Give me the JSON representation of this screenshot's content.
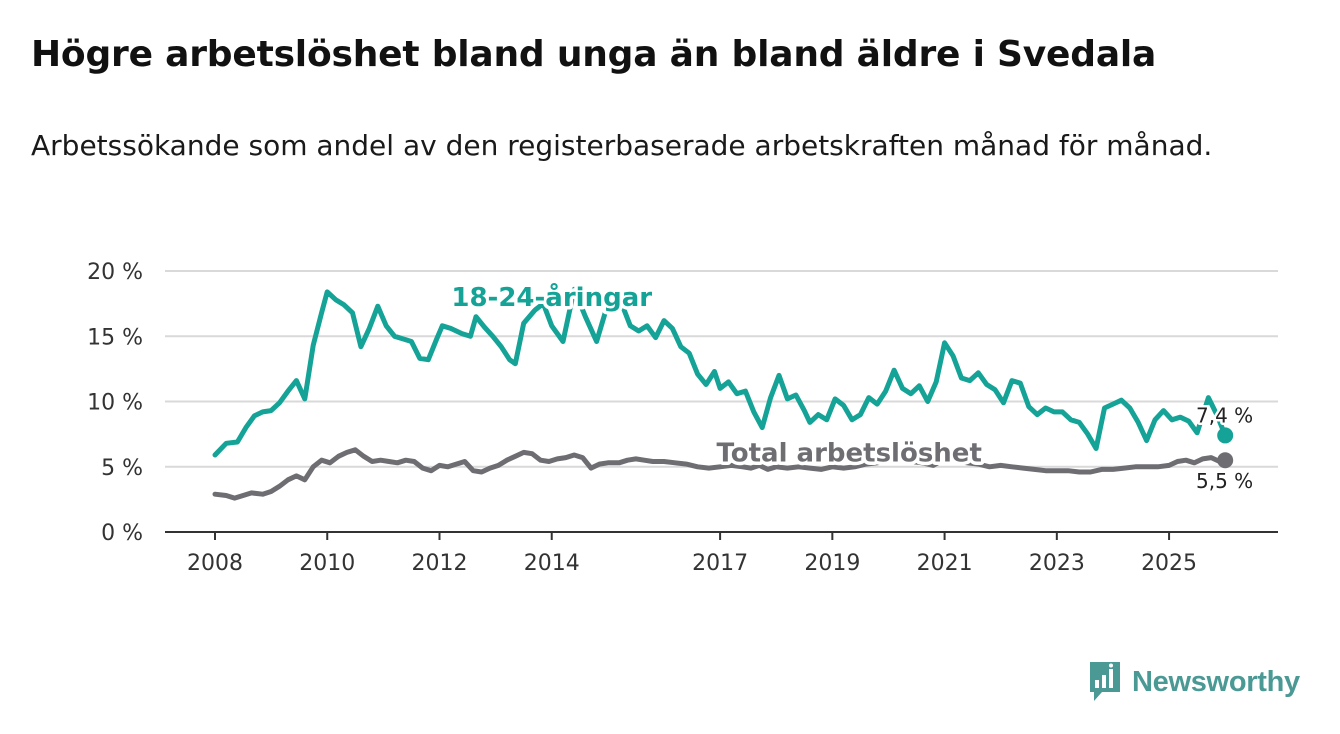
{
  "title": "Högre arbetslöshet bland unga än bland äldre i Svedala",
  "subtitle": "Arbetssökande som andel av den registerbaserade arbetskraften månad för månad.",
  "brand": {
    "name": "Newsworthy",
    "color": "#4a9994"
  },
  "colors": {
    "youth": "#14a396",
    "total": "#6e6d72",
    "grid": "#d9d9d9",
    "axis": "#333333"
  },
  "chart_data": {
    "type": "line",
    "title": "Högre arbetslöshet bland unga än bland äldre i Svedala",
    "xlabel": "",
    "ylabel": "",
    "xlim": [
      2008,
      2026.05
    ],
    "ylim": [
      0,
      20
    ],
    "yticks": [
      0,
      5,
      10,
      15,
      20
    ],
    "ytick_labels": [
      "0 %",
      "5 %",
      "10 %",
      "15 %",
      "20 %"
    ],
    "xticks": [
      2008,
      2010,
      2012,
      2014,
      2017,
      2019,
      2021,
      2023,
      2025
    ],
    "xtick_labels": [
      "2008",
      "2010",
      "2012",
      "2014",
      "2017",
      "2019",
      "2021",
      "2023",
      "2025"
    ],
    "grid": true,
    "series": [
      {
        "name": "18-24-åringar",
        "color": "#14a396",
        "end_label": "7,4 %",
        "points": [
          [
            2008.0,
            5.9
          ],
          [
            2008.2,
            6.8
          ],
          [
            2008.4,
            6.9
          ],
          [
            2008.55,
            8.0
          ],
          [
            2008.7,
            8.9
          ],
          [
            2008.85,
            9.2
          ],
          [
            2009.0,
            9.3
          ],
          [
            2009.15,
            9.9
          ],
          [
            2009.3,
            10.8
          ],
          [
            2009.45,
            11.6
          ],
          [
            2009.6,
            10.2
          ],
          [
            2009.75,
            14.3
          ],
          [
            2009.9,
            16.8
          ],
          [
            2010.0,
            18.4
          ],
          [
            2010.15,
            17.8
          ],
          [
            2010.3,
            17.4
          ],
          [
            2010.45,
            16.8
          ],
          [
            2010.6,
            14.2
          ],
          [
            2010.75,
            15.6
          ],
          [
            2010.9,
            17.3
          ],
          [
            2011.05,
            15.8
          ],
          [
            2011.2,
            15.0
          ],
          [
            2011.35,
            14.8
          ],
          [
            2011.5,
            14.6
          ],
          [
            2011.65,
            13.3
          ],
          [
            2011.8,
            13.2
          ],
          [
            2011.95,
            14.8
          ],
          [
            2012.05,
            15.8
          ],
          [
            2012.2,
            15.6
          ],
          [
            2012.3,
            15.4
          ],
          [
            2012.4,
            15.2
          ],
          [
            2012.55,
            15.0
          ],
          [
            2012.65,
            16.5
          ],
          [
            2012.8,
            15.7
          ],
          [
            2012.95,
            15.0
          ],
          [
            2013.1,
            14.2
          ],
          [
            2013.25,
            13.2
          ],
          [
            2013.35,
            12.9
          ],
          [
            2013.5,
            16.0
          ],
          [
            2013.7,
            17.0
          ],
          [
            2013.85,
            17.5
          ],
          [
            2014.0,
            15.8
          ],
          [
            2014.2,
            14.6
          ],
          [
            2014.4,
            18.6
          ],
          [
            2014.6,
            16.5
          ],
          [
            2014.8,
            14.6
          ],
          [
            2015.0,
            17.5
          ],
          [
            2015.2,
            18.0
          ],
          [
            2015.4,
            15.8
          ],
          [
            2015.55,
            15.4
          ],
          [
            2015.7,
            15.8
          ],
          [
            2015.85,
            14.9
          ],
          [
            2016.0,
            16.2
          ],
          [
            2016.15,
            15.6
          ],
          [
            2016.3,
            14.2
          ],
          [
            2016.45,
            13.7
          ],
          [
            2016.6,
            12.1
          ],
          [
            2016.75,
            11.3
          ],
          [
            2016.9,
            12.3
          ],
          [
            2017.0,
            11.0
          ],
          [
            2017.15,
            11.5
          ],
          [
            2017.3,
            10.6
          ],
          [
            2017.45,
            10.8
          ],
          [
            2017.6,
            9.2
          ],
          [
            2017.75,
            8.0
          ],
          [
            2017.9,
            10.3
          ],
          [
            2018.05,
            12.0
          ],
          [
            2018.2,
            10.2
          ],
          [
            2018.35,
            10.5
          ],
          [
            2018.5,
            9.3
          ],
          [
            2018.6,
            8.4
          ],
          [
            2018.75,
            9.0
          ],
          [
            2018.9,
            8.6
          ],
          [
            2019.05,
            10.2
          ],
          [
            2019.2,
            9.7
          ],
          [
            2019.35,
            8.6
          ],
          [
            2019.5,
            9.0
          ],
          [
            2019.65,
            10.3
          ],
          [
            2019.8,
            9.8
          ],
          [
            2019.95,
            10.8
          ],
          [
            2020.1,
            12.4
          ],
          [
            2020.25,
            11.0
          ],
          [
            2020.4,
            10.6
          ],
          [
            2020.55,
            11.2
          ],
          [
            2020.7,
            10.0
          ],
          [
            2020.85,
            11.5
          ],
          [
            2021.0,
            14.5
          ],
          [
            2021.15,
            13.5
          ],
          [
            2021.3,
            11.8
          ],
          [
            2021.45,
            11.6
          ],
          [
            2021.6,
            12.2
          ],
          [
            2021.75,
            11.3
          ],
          [
            2021.9,
            10.9
          ],
          [
            2022.05,
            9.9
          ],
          [
            2022.2,
            11.6
          ],
          [
            2022.35,
            11.4
          ],
          [
            2022.5,
            9.6
          ],
          [
            2022.65,
            9.0
          ],
          [
            2022.8,
            9.5
          ],
          [
            2022.95,
            9.2
          ],
          [
            2023.1,
            9.2
          ],
          [
            2023.25,
            8.6
          ],
          [
            2023.4,
            8.4
          ],
          [
            2023.55,
            7.5
          ],
          [
            2023.7,
            6.4
          ],
          [
            2023.85,
            9.5
          ],
          [
            2024.0,
            9.8
          ],
          [
            2024.15,
            10.1
          ],
          [
            2024.3,
            9.5
          ],
          [
            2024.45,
            8.4
          ],
          [
            2024.6,
            7.0
          ],
          [
            2024.75,
            8.6
          ],
          [
            2024.9,
            9.3
          ],
          [
            2025.05,
            8.6
          ],
          [
            2025.2,
            8.8
          ],
          [
            2025.35,
            8.5
          ],
          [
            2025.5,
            7.6
          ],
          [
            2025.7,
            10.3
          ],
          [
            2025.85,
            9.0
          ],
          [
            2026.0,
            7.4
          ]
        ]
      },
      {
        "name": "Total arbetslöshet",
        "color": "#6e6d72",
        "end_label": "5,5 %",
        "points": [
          [
            2008.0,
            2.9
          ],
          [
            2008.2,
            2.8
          ],
          [
            2008.35,
            2.6
          ],
          [
            2008.5,
            2.8
          ],
          [
            2008.65,
            3.0
          ],
          [
            2008.85,
            2.9
          ],
          [
            2009.0,
            3.1
          ],
          [
            2009.15,
            3.5
          ],
          [
            2009.3,
            4.0
          ],
          [
            2009.45,
            4.3
          ],
          [
            2009.6,
            4.0
          ],
          [
            2009.75,
            5.0
          ],
          [
            2009.9,
            5.5
          ],
          [
            2010.05,
            5.3
          ],
          [
            2010.2,
            5.8
          ],
          [
            2010.35,
            6.1
          ],
          [
            2010.5,
            6.3
          ],
          [
            2010.65,
            5.8
          ],
          [
            2010.8,
            5.4
          ],
          [
            2010.95,
            5.5
          ],
          [
            2011.1,
            5.4
          ],
          [
            2011.25,
            5.3
          ],
          [
            2011.4,
            5.5
          ],
          [
            2011.55,
            5.4
          ],
          [
            2011.7,
            4.9
          ],
          [
            2011.85,
            4.7
          ],
          [
            2012.0,
            5.1
          ],
          [
            2012.15,
            5.0
          ],
          [
            2012.3,
            5.2
          ],
          [
            2012.45,
            5.4
          ],
          [
            2012.6,
            4.7
          ],
          [
            2012.75,
            4.6
          ],
          [
            2012.9,
            4.9
          ],
          [
            2013.05,
            5.1
          ],
          [
            2013.2,
            5.5
          ],
          [
            2013.35,
            5.8
          ],
          [
            2013.5,
            6.1
          ],
          [
            2013.65,
            6.0
          ],
          [
            2013.8,
            5.5
          ],
          [
            2013.95,
            5.4
          ],
          [
            2014.1,
            5.6
          ],
          [
            2014.25,
            5.7
          ],
          [
            2014.4,
            5.9
          ],
          [
            2014.55,
            5.7
          ],
          [
            2014.7,
            4.9
          ],
          [
            2014.85,
            5.2
          ],
          [
            2015.0,
            5.3
          ],
          [
            2015.2,
            5.3
          ],
          [
            2015.35,
            5.5
          ],
          [
            2015.5,
            5.6
          ],
          [
            2015.65,
            5.5
          ],
          [
            2015.8,
            5.4
          ],
          [
            2016.0,
            5.4
          ],
          [
            2016.2,
            5.3
          ],
          [
            2016.4,
            5.2
          ],
          [
            2016.6,
            5.0
          ],
          [
            2016.8,
            4.9
          ],
          [
            2017.0,
            5.0
          ],
          [
            2017.2,
            5.1
          ],
          [
            2017.4,
            5.0
          ],
          [
            2017.55,
            4.9
          ],
          [
            2017.7,
            5.1
          ],
          [
            2017.85,
            4.8
          ],
          [
            2018.0,
            5.0
          ],
          [
            2018.2,
            4.9
          ],
          [
            2018.4,
            5.0
          ],
          [
            2018.6,
            4.9
          ],
          [
            2018.8,
            4.8
          ],
          [
            2019.0,
            5.0
          ],
          [
            2019.2,
            4.9
          ],
          [
            2019.4,
            5.0
          ],
          [
            2019.6,
            5.2
          ],
          [
            2019.8,
            5.3
          ],
          [
            2020.0,
            5.5
          ],
          [
            2020.2,
            5.6
          ],
          [
            2020.4,
            5.4
          ],
          [
            2020.6,
            5.3
          ],
          [
            2020.8,
            5.1
          ],
          [
            2021.0,
            5.6
          ],
          [
            2021.2,
            5.5
          ],
          [
            2021.4,
            5.3
          ],
          [
            2021.6,
            5.2
          ],
          [
            2021.8,
            5.0
          ],
          [
            2022.0,
            5.1
          ],
          [
            2022.2,
            5.0
          ],
          [
            2022.4,
            4.9
          ],
          [
            2022.6,
            4.8
          ],
          [
            2022.8,
            4.7
          ],
          [
            2023.0,
            4.7
          ],
          [
            2023.2,
            4.7
          ],
          [
            2023.4,
            4.6
          ],
          [
            2023.6,
            4.6
          ],
          [
            2023.8,
            4.8
          ],
          [
            2024.0,
            4.8
          ],
          [
            2024.2,
            4.9
          ],
          [
            2024.4,
            5.0
          ],
          [
            2024.6,
            5.0
          ],
          [
            2024.8,
            5.0
          ],
          [
            2025.0,
            5.1
          ],
          [
            2025.15,
            5.4
          ],
          [
            2025.3,
            5.5
          ],
          [
            2025.45,
            5.3
          ],
          [
            2025.6,
            5.6
          ],
          [
            2025.75,
            5.7
          ],
          [
            2025.9,
            5.4
          ],
          [
            2026.0,
            5.5
          ]
        ]
      }
    ],
    "annotations": [
      {
        "text": "18-24-åringar",
        "series": "18-24-åringar",
        "x": 2014.0,
        "y": 17.3
      },
      {
        "text": "Total arbetslöshet",
        "series": "Total arbetslöshet",
        "x": 2019.3,
        "y": 5.4
      }
    ]
  }
}
